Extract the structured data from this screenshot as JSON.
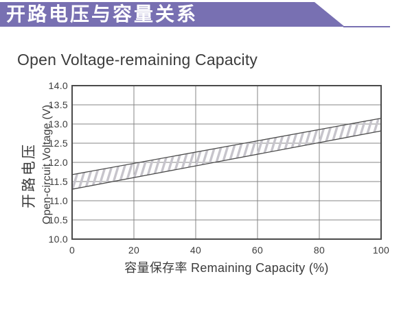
{
  "page": {
    "background": "#ffffff"
  },
  "banner": {
    "title": "开路电压与容量关系",
    "color": "#7870B2",
    "text_color": "#ffffff"
  },
  "chart_data": {
    "type": "area",
    "title": "Open Voltage-remaining Capacity",
    "xlabel": "容量保存率 Remaining Capacity (%)",
    "ylabel_cn": "开路电压",
    "ylabel_en": "Open-circuit Voltage (V)",
    "xlim": [
      0,
      100
    ],
    "ylim": [
      10.0,
      14.0
    ],
    "x_ticks": [
      0,
      20,
      40,
      60,
      80,
      100
    ],
    "x_tick_labels": [
      "0",
      "20",
      "40",
      "60",
      "80",
      "100"
    ],
    "y_ticks": [
      14.0,
      13.5,
      13.0,
      12.5,
      12.0,
      11.5,
      11.0,
      10.5,
      10.0
    ],
    "y_tick_labels": [
      "14.0",
      "13.5",
      "13.0",
      "12.5",
      "12.0",
      "11.5",
      "11.0",
      "10.5",
      "10.0"
    ],
    "grid": true,
    "legend": false,
    "band": {
      "label": "open-circuit voltage range (hatched band)",
      "x": [
        0,
        100
      ],
      "upper": [
        11.68,
        13.15
      ],
      "lower": [
        11.3,
        12.82
      ]
    },
    "colors": {
      "grid": "#848484",
      "border": "#4a4a4a",
      "hatch_fill": "#c6c4cb",
      "band_outline": "#4a4a4a",
      "text": "#3b3b3b"
    }
  }
}
